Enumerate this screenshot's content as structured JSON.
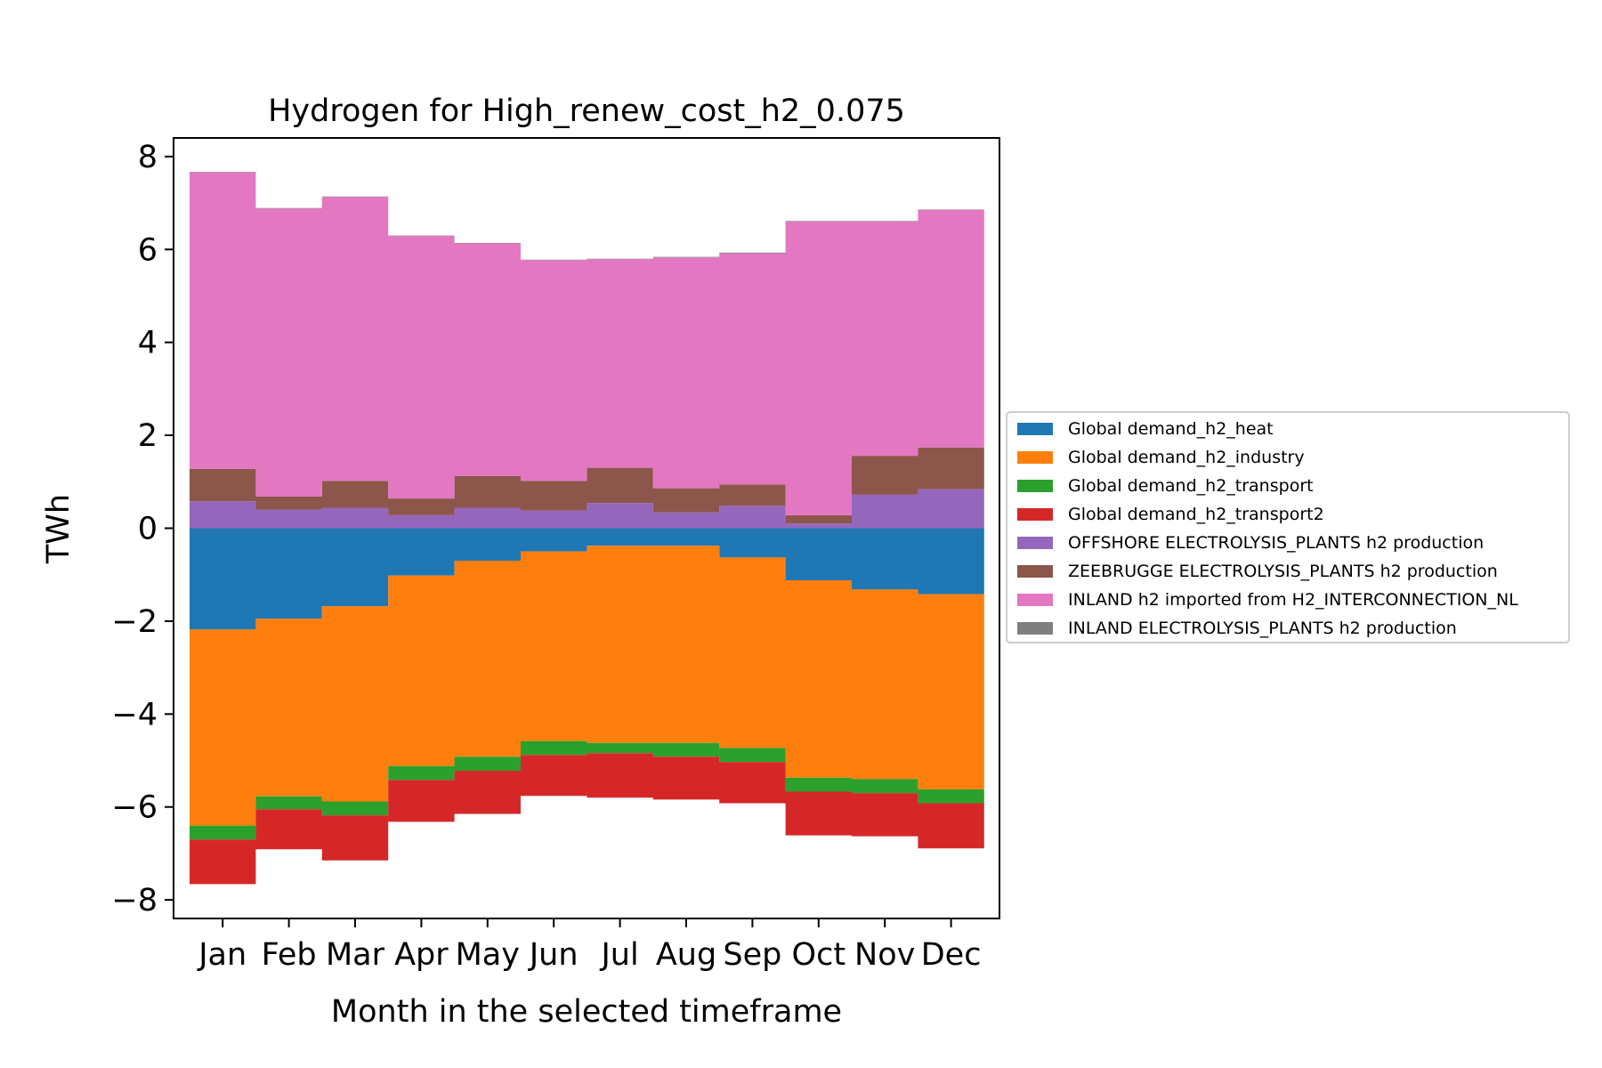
{
  "chart_data": {
    "type": "area",
    "title": "Hydrogen for High_renew_cost_h2_0.075",
    "xlabel": "Month in the selected timeframe",
    "ylabel": "TWh",
    "categories": [
      "Jan",
      "Feb",
      "Mar",
      "Apr",
      "May",
      "Jun",
      "Jul",
      "Aug",
      "Sep",
      "Oct",
      "Nov",
      "Dec"
    ],
    "ylim": [
      -8.4,
      8.4
    ],
    "yticks": [
      8,
      6,
      4,
      2,
      0,
      -2,
      -4,
      -6,
      -8
    ],
    "ytick_labels": [
      "8",
      "6",
      "4",
      "2",
      "0",
      "−2",
      "−4",
      "−6",
      "−8"
    ],
    "legend_position": "right",
    "grid": false,
    "negative_series": [
      {
        "name": "Global demand_h2_heat",
        "color": "#1f77b4",
        "values": [
          -2.18,
          -1.95,
          -1.68,
          -1.02,
          -0.7,
          -0.5,
          -0.38,
          -0.38,
          -0.63,
          -1.12,
          -1.32,
          -1.42
        ]
      },
      {
        "name": "Global demand_h2_industry",
        "color": "#ff7f0e",
        "values": [
          -4.22,
          -3.82,
          -4.2,
          -4.1,
          -4.22,
          -4.08,
          -4.24,
          -4.24,
          -4.1,
          -4.25,
          -4.08,
          -4.2
        ]
      },
      {
        "name": "Global demand_h2_transport",
        "color": "#2ca02c",
        "values": [
          -0.3,
          -0.28,
          -0.3,
          -0.3,
          -0.3,
          -0.3,
          -0.22,
          -0.3,
          -0.3,
          -0.3,
          -0.3,
          -0.3
        ]
      },
      {
        "name": "Global demand_h2_transport2",
        "color": "#d62728",
        "values": [
          -0.96,
          -0.86,
          -0.97,
          -0.9,
          -0.93,
          -0.88,
          -0.96,
          -0.92,
          -0.89,
          -0.94,
          -0.93,
          -0.97
        ]
      }
    ],
    "positive_series": [
      {
        "name": "OFFSHORE ELECTROLYSIS_PLANTS h2 production",
        "color": "#9467bd",
        "values": [
          0.58,
          0.4,
          0.44,
          0.28,
          0.44,
          0.38,
          0.54,
          0.34,
          0.48,
          0.1,
          0.72,
          0.84
        ]
      },
      {
        "name": "ZEEBRUGGE ELECTROLYSIS_PLANTS h2 production",
        "color": "#8c564b",
        "values": [
          0.7,
          0.28,
          0.58,
          0.36,
          0.68,
          0.64,
          0.76,
          0.52,
          0.46,
          0.18,
          0.84,
          0.9
        ]
      },
      {
        "name": "INLAND h2 imported from H2_INTERCONNECTION_NL",
        "color": "#e377c2",
        "values": [
          6.38,
          6.2,
          6.11,
          5.65,
          5.01,
          4.75,
          4.49,
          4.97,
          4.98,
          6.32,
          5.04,
          5.11
        ]
      },
      {
        "name": "INLAND ELECTROLYSIS_PLANTS h2 production",
        "color": "#7f7f7f",
        "values": [
          0.01,
          0.01,
          0.01,
          0.01,
          0.01,
          0.01,
          0.01,
          0.01,
          0.01,
          0.01,
          0.01,
          0.01
        ]
      }
    ],
    "legend": [
      {
        "label": "Global demand_h2_heat",
        "color": "#1f77b4"
      },
      {
        "label": "Global demand_h2_industry",
        "color": "#ff7f0e"
      },
      {
        "label": "Global demand_h2_transport",
        "color": "#2ca02c"
      },
      {
        "label": "Global demand_h2_transport2",
        "color": "#d62728"
      },
      {
        "label": "OFFSHORE ELECTROLYSIS_PLANTS h2 production",
        "color": "#9467bd"
      },
      {
        "label": "ZEEBRUGGE ELECTROLYSIS_PLANTS h2 production",
        "color": "#8c564b"
      },
      {
        "label": "INLAND h2 imported from H2_INTERCONNECTION_NL",
        "color": "#e377c2"
      },
      {
        "label": "INLAND ELECTROLYSIS_PLANTS h2 production",
        "color": "#7f7f7f"
      }
    ]
  }
}
